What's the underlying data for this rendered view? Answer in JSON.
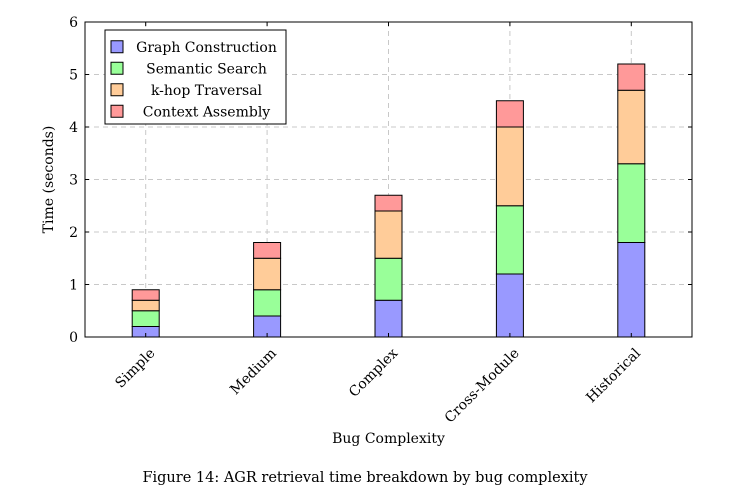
{
  "figure": {
    "caption": "Figure 14: AGR retrieval time breakdown by bug complexity"
  },
  "chart_data": {
    "type": "bar",
    "stacked": true,
    "categories": [
      "Simple",
      "Medium",
      "Complex",
      "Cross-Module",
      "Historical"
    ],
    "series": [
      {
        "name": "Graph Construction",
        "color": "#9999ff",
        "values": [
          0.2,
          0.4,
          0.7,
          1.2,
          1.8
        ]
      },
      {
        "name": "Semantic Search",
        "color": "#99ff99",
        "values": [
          0.3,
          0.5,
          0.8,
          1.3,
          1.5
        ]
      },
      {
        "name": "k-hop Traversal",
        "color": "#ffcc99",
        "values": [
          0.2,
          0.6,
          0.9,
          1.5,
          1.4
        ]
      },
      {
        "name": "Context Assembly",
        "color": "#ff9999",
        "values": [
          0.2,
          0.3,
          0.3,
          0.5,
          0.5
        ]
      }
    ],
    "xlabel": "Bug Complexity",
    "ylabel": "Time (seconds)",
    "ylim": [
      0,
      6
    ],
    "yticks": [
      "0",
      "1",
      "2",
      "3",
      "4",
      "5",
      "6"
    ],
    "grid": true,
    "legend_position": "top-left"
  }
}
